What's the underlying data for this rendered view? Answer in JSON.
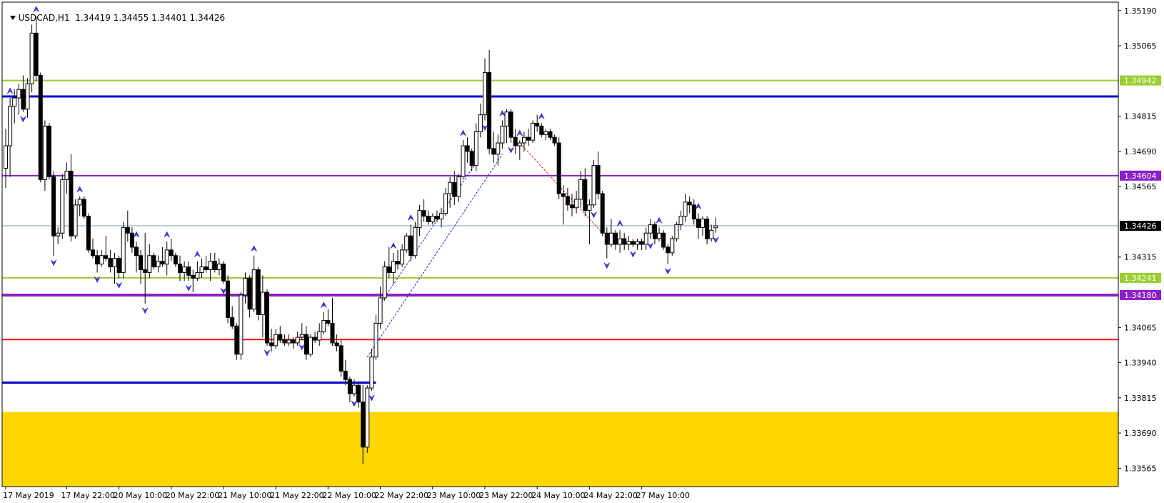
{
  "header": {
    "symbol_timeframe": "USDCAD,H1",
    "ohlc": "1.34419 1.34455 1.34401 1.34426"
  },
  "colors": {
    "background": "#ffffff",
    "axis": "#000000",
    "bull_body": "#ffffff",
    "bear_body": "#000000",
    "zone": "#ffd700",
    "fractal": "#3a3af0"
  },
  "chart_data": {
    "type": "candlestick",
    "symbol": "USDCAD",
    "timeframe": "H1",
    "ylim": [
      1.335,
      1.3522
    ],
    "y_ticks": [
      "1.35190",
      "1.35065",
      "1.34815",
      "1.34690",
      "1.34565",
      "1.34315",
      "1.34065",
      "1.33940",
      "1.33815",
      "1.33690",
      "1.33565"
    ],
    "x_ticks": [
      "17 May 2019",
      "17 May 22:00",
      "20 May 10:00",
      "20 May 22:00",
      "21 May 10:00",
      "21 May 22:00",
      "22 May 10:00",
      "22 May 22:00",
      "23 May 10:00",
      "23 May 22:00",
      "24 May 10:00",
      "24 May 22:00",
      "27 May 10:00"
    ],
    "current_price": "1.34426",
    "levels": [
      {
        "price": 1.34942,
        "label": "1.34942",
        "color": "#9acd32",
        "width": 2
      },
      {
        "price": 1.34885,
        "label": "",
        "color": "#0000cd",
        "width": 3
      },
      {
        "price": 1.34604,
        "label": "1.34604",
        "color": "#8b1fc9",
        "width": 2
      },
      {
        "price": 1.34426,
        "label": "1.34426",
        "color": "#7a9cc6",
        "width": 1,
        "current": true
      },
      {
        "price": 1.34241,
        "label": "1.34241",
        "color": "#9acd32",
        "width": 2
      },
      {
        "price": 1.3418,
        "label": "1.34180",
        "color": "#8b1fc9",
        "width": 4
      },
      {
        "price": 1.34022,
        "label": "",
        "color": "#ee1111",
        "width": 2
      }
    ],
    "segment_levels": [
      {
        "price": 1.33869,
        "from_index": 0,
        "to_index": 85,
        "color": "#0000cd",
        "width": 3
      }
    ],
    "zone": {
      "from": 1.33765,
      "to": 1.335,
      "color": "#ffd700"
    },
    "candles": [
      {
        "o": 1.3463,
        "h": 1.3477,
        "l": 1.3456,
        "c": 1.3471
      },
      {
        "o": 1.3471,
        "h": 1.3488,
        "l": 1.346,
        "c": 1.3485
      },
      {
        "o": 1.3485,
        "h": 1.3491,
        "l": 1.3479,
        "c": 1.3488
      },
      {
        "o": 1.3488,
        "h": 1.3493,
        "l": 1.3482,
        "c": 1.3491
      },
      {
        "o": 1.3491,
        "h": 1.3496,
        "l": 1.3483,
        "c": 1.3484
      },
      {
        "o": 1.3484,
        "h": 1.3495,
        "l": 1.3481,
        "c": 1.3493
      },
      {
        "o": 1.3493,
        "h": 1.3514,
        "l": 1.349,
        "c": 1.3511
      },
      {
        "o": 1.3511,
        "h": 1.3517,
        "l": 1.3494,
        "c": 1.3496
      },
      {
        "o": 1.3496,
        "h": 1.3497,
        "l": 1.3458,
        "c": 1.3459
      },
      {
        "o": 1.3459,
        "h": 1.348,
        "l": 1.3455,
        "c": 1.3478
      },
      {
        "o": 1.3478,
        "h": 1.3479,
        "l": 1.3459,
        "c": 1.346
      },
      {
        "o": 1.346,
        "h": 1.3462,
        "l": 1.3432,
        "c": 1.3439
      },
      {
        "o": 1.3439,
        "h": 1.3442,
        "l": 1.3436,
        "c": 1.344
      },
      {
        "o": 1.344,
        "h": 1.3461,
        "l": 1.3438,
        "c": 1.3459
      },
      {
        "o": 1.3459,
        "h": 1.3465,
        "l": 1.3454,
        "c": 1.3462
      },
      {
        "o": 1.3462,
        "h": 1.3468,
        "l": 1.3437,
        "c": 1.3439
      },
      {
        "o": 1.3439,
        "h": 1.3452,
        "l": 1.3438,
        "c": 1.345
      },
      {
        "o": 1.345,
        "h": 1.3453,
        "l": 1.3446,
        "c": 1.3452
      },
      {
        "o": 1.3452,
        "h": 1.3453,
        "l": 1.3445,
        "c": 1.3446
      },
      {
        "o": 1.3446,
        "h": 1.3447,
        "l": 1.3433,
        "c": 1.3434
      },
      {
        "o": 1.3434,
        "h": 1.3438,
        "l": 1.3431,
        "c": 1.3432
      },
      {
        "o": 1.3432,
        "h": 1.3434,
        "l": 1.3426,
        "c": 1.3429
      },
      {
        "o": 1.3429,
        "h": 1.3434,
        "l": 1.3428,
        "c": 1.3432
      },
      {
        "o": 1.3432,
        "h": 1.3439,
        "l": 1.343,
        "c": 1.3431
      },
      {
        "o": 1.3431,
        "h": 1.3434,
        "l": 1.3426,
        "c": 1.3428
      },
      {
        "o": 1.3428,
        "h": 1.3433,
        "l": 1.3422,
        "c": 1.3431
      },
      {
        "o": 1.3431,
        "h": 1.3432,
        "l": 1.3424,
        "c": 1.3426
      },
      {
        "o": 1.3426,
        "h": 1.3444,
        "l": 1.3424,
        "c": 1.3442
      },
      {
        "o": 1.3442,
        "h": 1.3448,
        "l": 1.3437,
        "c": 1.344
      },
      {
        "o": 1.344,
        "h": 1.3442,
        "l": 1.3433,
        "c": 1.3435
      },
      {
        "o": 1.3435,
        "h": 1.3437,
        "l": 1.3426,
        "c": 1.3432
      },
      {
        "o": 1.3432,
        "h": 1.3434,
        "l": 1.3422,
        "c": 1.3427
      },
      {
        "o": 1.3427,
        "h": 1.344,
        "l": 1.3415,
        "c": 1.3426
      },
      {
        "o": 1.3426,
        "h": 1.3436,
        "l": 1.3424,
        "c": 1.3432
      },
      {
        "o": 1.3432,
        "h": 1.3433,
        "l": 1.3427,
        "c": 1.3428
      },
      {
        "o": 1.3428,
        "h": 1.3432,
        "l": 1.3426,
        "c": 1.343
      },
      {
        "o": 1.343,
        "h": 1.3435,
        "l": 1.3428,
        "c": 1.3429
      },
      {
        "o": 1.3429,
        "h": 1.3437,
        "l": 1.3425,
        "c": 1.3434
      },
      {
        "o": 1.3434,
        "h": 1.3438,
        "l": 1.343,
        "c": 1.3432
      },
      {
        "o": 1.3432,
        "h": 1.3433,
        "l": 1.3428,
        "c": 1.3429
      },
      {
        "o": 1.3429,
        "h": 1.3432,
        "l": 1.3423,
        "c": 1.3426
      },
      {
        "o": 1.3426,
        "h": 1.343,
        "l": 1.3423,
        "c": 1.3428
      },
      {
        "o": 1.3428,
        "h": 1.343,
        "l": 1.3423,
        "c": 1.3425
      },
      {
        "o": 1.3425,
        "h": 1.3427,
        "l": 1.3419,
        "c": 1.3424
      },
      {
        "o": 1.3424,
        "h": 1.343,
        "l": 1.3423,
        "c": 1.3426
      },
      {
        "o": 1.3426,
        "h": 1.3431,
        "l": 1.3424,
        "c": 1.3428
      },
      {
        "o": 1.3428,
        "h": 1.3432,
        "l": 1.3426,
        "c": 1.3427
      },
      {
        "o": 1.3427,
        "h": 1.3433,
        "l": 1.3423,
        "c": 1.343
      },
      {
        "o": 1.343,
        "h": 1.3433,
        "l": 1.3426,
        "c": 1.3427
      },
      {
        "o": 1.3427,
        "h": 1.3431,
        "l": 1.3425,
        "c": 1.3429
      },
      {
        "o": 1.3429,
        "h": 1.343,
        "l": 1.3422,
        "c": 1.3423
      },
      {
        "o": 1.3423,
        "h": 1.3425,
        "l": 1.3408,
        "c": 1.341
      },
      {
        "o": 1.341,
        "h": 1.3414,
        "l": 1.3406,
        "c": 1.3407
      },
      {
        "o": 1.3407,
        "h": 1.3408,
        "l": 1.3395,
        "c": 1.3397
      },
      {
        "o": 1.3397,
        "h": 1.3419,
        "l": 1.3395,
        "c": 1.3418
      },
      {
        "o": 1.3418,
        "h": 1.3426,
        "l": 1.3415,
        "c": 1.3424
      },
      {
        "o": 1.3424,
        "h": 1.3425,
        "l": 1.341,
        "c": 1.3413
      },
      {
        "o": 1.3413,
        "h": 1.3432,
        "l": 1.3412,
        "c": 1.3427
      },
      {
        "o": 1.3427,
        "h": 1.3428,
        "l": 1.3409,
        "c": 1.3411
      },
      {
        "o": 1.3411,
        "h": 1.3425,
        "l": 1.3403,
        "c": 1.3419
      },
      {
        "o": 1.3419,
        "h": 1.342,
        "l": 1.34,
        "c": 1.3401
      },
      {
        "o": 1.3401,
        "h": 1.3406,
        "l": 1.3398,
        "c": 1.34
      },
      {
        "o": 1.34,
        "h": 1.3406,
        "l": 1.3399,
        "c": 1.3404
      },
      {
        "o": 1.3404,
        "h": 1.3407,
        "l": 1.3401,
        "c": 1.3402
      },
      {
        "o": 1.3402,
        "h": 1.3404,
        "l": 1.34,
        "c": 1.3401
      },
      {
        "o": 1.3401,
        "h": 1.3404,
        "l": 1.34,
        "c": 1.3402
      },
      {
        "o": 1.3402,
        "h": 1.3403,
        "l": 1.3399,
        "c": 1.3401
      },
      {
        "o": 1.3401,
        "h": 1.3405,
        "l": 1.34,
        "c": 1.3403
      },
      {
        "o": 1.3403,
        "h": 1.3408,
        "l": 1.3402,
        "c": 1.3404
      },
      {
        "o": 1.3404,
        "h": 1.3407,
        "l": 1.3395,
        "c": 1.3397
      },
      {
        "o": 1.3397,
        "h": 1.3404,
        "l": 1.3396,
        "c": 1.3403
      },
      {
        "o": 1.3403,
        "h": 1.3405,
        "l": 1.3401,
        "c": 1.3402
      },
      {
        "o": 1.3402,
        "h": 1.3408,
        "l": 1.34,
        "c": 1.3405
      },
      {
        "o": 1.3405,
        "h": 1.3412,
        "l": 1.3404,
        "c": 1.3409
      },
      {
        "o": 1.3409,
        "h": 1.3413,
        "l": 1.3407,
        "c": 1.3408
      },
      {
        "o": 1.3408,
        "h": 1.3417,
        "l": 1.34,
        "c": 1.3401
      },
      {
        "o": 1.3401,
        "h": 1.3404,
        "l": 1.3398,
        "c": 1.34
      },
      {
        "o": 1.34,
        "h": 1.3402,
        "l": 1.3389,
        "c": 1.3391
      },
      {
        "o": 1.3391,
        "h": 1.3395,
        "l": 1.3386,
        "c": 1.3388
      },
      {
        "o": 1.3388,
        "h": 1.3389,
        "l": 1.338,
        "c": 1.3383
      },
      {
        "o": 1.3383,
        "h": 1.3388,
        "l": 1.3382,
        "c": 1.3386
      },
      {
        "o": 1.3386,
        "h": 1.3387,
        "l": 1.3378,
        "c": 1.338
      },
      {
        "o": 1.338,
        "h": 1.3386,
        "l": 1.3358,
        "c": 1.3364
      },
      {
        "o": 1.3364,
        "h": 1.3386,
        "l": 1.3362,
        "c": 1.3385
      },
      {
        "o": 1.3385,
        "h": 1.3399,
        "l": 1.3384,
        "c": 1.3396
      },
      {
        "o": 1.3396,
        "h": 1.3411,
        "l": 1.3395,
        "c": 1.3408
      },
      {
        "o": 1.3408,
        "h": 1.3421,
        "l": 1.3406,
        "c": 1.3417
      },
      {
        "o": 1.3417,
        "h": 1.343,
        "l": 1.3416,
        "c": 1.3428
      },
      {
        "o": 1.3428,
        "h": 1.3435,
        "l": 1.3424,
        "c": 1.3426
      },
      {
        "o": 1.3426,
        "h": 1.3433,
        "l": 1.3422,
        "c": 1.343
      },
      {
        "o": 1.343,
        "h": 1.3434,
        "l": 1.3427,
        "c": 1.3429
      },
      {
        "o": 1.3429,
        "h": 1.3436,
        "l": 1.3428,
        "c": 1.3434
      },
      {
        "o": 1.3434,
        "h": 1.344,
        "l": 1.3433,
        "c": 1.3439
      },
      {
        "o": 1.3439,
        "h": 1.3443,
        "l": 1.343,
        "c": 1.3432
      },
      {
        "o": 1.3432,
        "h": 1.3444,
        "l": 1.3431,
        "c": 1.3442
      },
      {
        "o": 1.3442,
        "h": 1.345,
        "l": 1.3439,
        "c": 1.3448
      },
      {
        "o": 1.3448,
        "h": 1.3452,
        "l": 1.3444,
        "c": 1.3446
      },
      {
        "o": 1.3446,
        "h": 1.3448,
        "l": 1.3443,
        "c": 1.3444
      },
      {
        "o": 1.3444,
        "h": 1.3447,
        "l": 1.3443,
        "c": 1.3446
      },
      {
        "o": 1.3446,
        "h": 1.3448,
        "l": 1.3444,
        "c": 1.3445
      },
      {
        "o": 1.3445,
        "h": 1.3449,
        "l": 1.3442,
        "c": 1.3447
      },
      {
        "o": 1.3447,
        "h": 1.3456,
        "l": 1.3446,
        "c": 1.3454
      },
      {
        "o": 1.3454,
        "h": 1.346,
        "l": 1.3449,
        "c": 1.3458
      },
      {
        "o": 1.3458,
        "h": 1.3462,
        "l": 1.345,
        "c": 1.3453
      },
      {
        "o": 1.3453,
        "h": 1.3461,
        "l": 1.3451,
        "c": 1.346
      },
      {
        "o": 1.346,
        "h": 1.3473,
        "l": 1.3459,
        "c": 1.3471
      },
      {
        "o": 1.3471,
        "h": 1.3474,
        "l": 1.3465,
        "c": 1.3469
      },
      {
        "o": 1.3469,
        "h": 1.347,
        "l": 1.3462,
        "c": 1.3464
      },
      {
        "o": 1.3464,
        "h": 1.3479,
        "l": 1.3462,
        "c": 1.3476
      },
      {
        "o": 1.3476,
        "h": 1.3486,
        "l": 1.3474,
        "c": 1.3482
      },
      {
        "o": 1.3482,
        "h": 1.3502,
        "l": 1.348,
        "c": 1.3497
      },
      {
        "o": 1.3497,
        "h": 1.3505,
        "l": 1.3468,
        "c": 1.347
      },
      {
        "o": 1.347,
        "h": 1.3476,
        "l": 1.3465,
        "c": 1.3468
      },
      {
        "o": 1.3468,
        "h": 1.3475,
        "l": 1.3464,
        "c": 1.3472
      },
      {
        "o": 1.3472,
        "h": 1.348,
        "l": 1.347,
        "c": 1.3478
      },
      {
        "o": 1.3478,
        "h": 1.3484,
        "l": 1.3472,
        "c": 1.3483
      },
      {
        "o": 1.3483,
        "h": 1.3484,
        "l": 1.3472,
        "c": 1.3474
      },
      {
        "o": 1.3474,
        "h": 1.3477,
        "l": 1.3468,
        "c": 1.3471
      },
      {
        "o": 1.3471,
        "h": 1.3473,
        "l": 1.3466,
        "c": 1.3472
      },
      {
        "o": 1.3472,
        "h": 1.3476,
        "l": 1.3469,
        "c": 1.3474
      },
      {
        "o": 1.3474,
        "h": 1.3477,
        "l": 1.3471,
        "c": 1.3473
      },
      {
        "o": 1.3473,
        "h": 1.348,
        "l": 1.3472,
        "c": 1.3479
      },
      {
        "o": 1.3479,
        "h": 1.3482,
        "l": 1.3476,
        "c": 1.3478
      },
      {
        "o": 1.3478,
        "h": 1.3479,
        "l": 1.3474,
        "c": 1.3475
      },
      {
        "o": 1.3475,
        "h": 1.3477,
        "l": 1.3473,
        "c": 1.3476
      },
      {
        "o": 1.3476,
        "h": 1.3477,
        "l": 1.3473,
        "c": 1.3474
      },
      {
        "o": 1.3474,
        "h": 1.3475,
        "l": 1.3471,
        "c": 1.3472
      },
      {
        "o": 1.3472,
        "h": 1.3474,
        "l": 1.3452,
        "c": 1.3454
      },
      {
        "o": 1.3454,
        "h": 1.3457,
        "l": 1.3443,
        "c": 1.3453
      },
      {
        "o": 1.3453,
        "h": 1.3456,
        "l": 1.3448,
        "c": 1.345
      },
      {
        "o": 1.345,
        "h": 1.3454,
        "l": 1.3446,
        "c": 1.3449
      },
      {
        "o": 1.3449,
        "h": 1.3455,
        "l": 1.3447,
        "c": 1.3452
      },
      {
        "o": 1.3452,
        "h": 1.3462,
        "l": 1.3449,
        "c": 1.3459
      },
      {
        "o": 1.3459,
        "h": 1.3463,
        "l": 1.3446,
        "c": 1.3448
      },
      {
        "o": 1.3448,
        "h": 1.3452,
        "l": 1.3436,
        "c": 1.345
      },
      {
        "o": 1.345,
        "h": 1.3466,
        "l": 1.3449,
        "c": 1.3464
      },
      {
        "o": 1.3464,
        "h": 1.3469,
        "l": 1.3452,
        "c": 1.3454
      },
      {
        "o": 1.3454,
        "h": 1.3455,
        "l": 1.3439,
        "c": 1.344
      },
      {
        "o": 1.344,
        "h": 1.3442,
        "l": 1.3431,
        "c": 1.3436
      },
      {
        "o": 1.3436,
        "h": 1.3445,
        "l": 1.3435,
        "c": 1.344
      },
      {
        "o": 1.344,
        "h": 1.3441,
        "l": 1.3434,
        "c": 1.3436
      },
      {
        "o": 1.3436,
        "h": 1.3441,
        "l": 1.3433,
        "c": 1.3438
      },
      {
        "o": 1.3438,
        "h": 1.344,
        "l": 1.3434,
        "c": 1.3436
      },
      {
        "o": 1.3436,
        "h": 1.3439,
        "l": 1.3434,
        "c": 1.3437
      },
      {
        "o": 1.3437,
        "h": 1.3438,
        "l": 1.3435,
        "c": 1.3436
      },
      {
        "o": 1.3436,
        "h": 1.3438,
        "l": 1.3434,
        "c": 1.3437
      },
      {
        "o": 1.3437,
        "h": 1.3438,
        "l": 1.3434,
        "c": 1.3436
      },
      {
        "o": 1.3436,
        "h": 1.3442,
        "l": 1.3434,
        "c": 1.344
      },
      {
        "o": 1.344,
        "h": 1.3445,
        "l": 1.3438,
        "c": 1.3443
      },
      {
        "o": 1.3443,
        "h": 1.3444,
        "l": 1.3436,
        "c": 1.3438
      },
      {
        "o": 1.3438,
        "h": 1.3442,
        "l": 1.3437,
        "c": 1.344
      },
      {
        "o": 1.344,
        "h": 1.3441,
        "l": 1.3434,
        "c": 1.3435
      },
      {
        "o": 1.3435,
        "h": 1.3436,
        "l": 1.3429,
        "c": 1.3433
      },
      {
        "o": 1.3433,
        "h": 1.3439,
        "l": 1.3432,
        "c": 1.3438
      },
      {
        "o": 1.3438,
        "h": 1.3444,
        "l": 1.3437,
        "c": 1.3443
      },
      {
        "o": 1.3443,
        "h": 1.3448,
        "l": 1.3441,
        "c": 1.3446
      },
      {
        "o": 1.3446,
        "h": 1.3454,
        "l": 1.3444,
        "c": 1.3451
      },
      {
        "o": 1.3451,
        "h": 1.3453,
        "l": 1.3447,
        "c": 1.345
      },
      {
        "o": 1.345,
        "h": 1.3452,
        "l": 1.3443,
        "c": 1.3445
      },
      {
        "o": 1.3445,
        "h": 1.3447,
        "l": 1.3438,
        "c": 1.3442
      },
      {
        "o": 1.3442,
        "h": 1.3446,
        "l": 1.3439,
        "c": 1.3445
      },
      {
        "o": 1.3445,
        "h": 1.3446,
        "l": 1.3436,
        "c": 1.3438
      },
      {
        "o": 1.3438,
        "h": 1.3443,
        "l": 1.3437,
        "c": 1.3441
      },
      {
        "o": 1.34419,
        "h": 1.34455,
        "l": 1.34401,
        "c": 1.34426
      }
    ],
    "fractals_up": [
      1,
      7,
      17,
      30,
      37,
      44,
      57,
      73,
      89,
      93,
      105,
      114,
      118,
      123,
      141,
      150,
      159
    ],
    "fractals_down": [
      4,
      11,
      21,
      26,
      32,
      42,
      50,
      60,
      68,
      80,
      84,
      110,
      116,
      135,
      138,
      144,
      148,
      152,
      163
    ],
    "trendlines": [
      {
        "from": [
          83,
          1.3396
        ],
        "to": [
          114,
          1.3468
        ],
        "color": "#2020dd"
      },
      {
        "from": [
          86,
          1.3415
        ],
        "to": [
          108,
          1.3465
        ],
        "color": "#2020dd"
      },
      {
        "from": [
          118,
          1.3472
        ],
        "to": [
          137,
          1.344
        ],
        "color": "#dd2020"
      }
    ]
  }
}
